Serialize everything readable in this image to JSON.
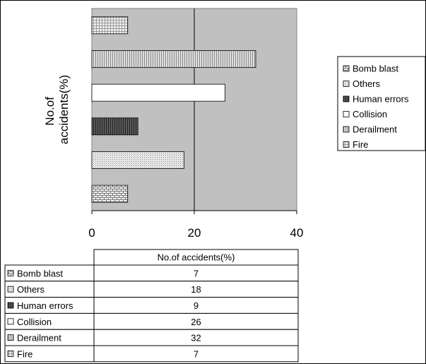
{
  "chart_data": {
    "type": "bar",
    "orientation": "horizontal",
    "title": "",
    "ylabel": "No.of accidents(%)",
    "xlabel": "",
    "xlim": [
      0,
      40
    ],
    "xticks": [
      0,
      20,
      40
    ],
    "grid": true,
    "legend_position": "right",
    "plot_background": "#c0c0c0",
    "series": [
      {
        "name": "Bomb blast",
        "value": 7,
        "pattern": "brick"
      },
      {
        "name": "Others",
        "value": 18,
        "pattern": "dots"
      },
      {
        "name": "Human errors",
        "value": 9,
        "pattern": "dark-vertical"
      },
      {
        "name": "Collision",
        "value": 26,
        "pattern": "white"
      },
      {
        "name": "Derailment",
        "value": 32,
        "pattern": "light-vertical"
      },
      {
        "name": "Fire",
        "value": 7,
        "pattern": "grid"
      }
    ],
    "table": {
      "header": "No.of accidents(%)"
    }
  }
}
